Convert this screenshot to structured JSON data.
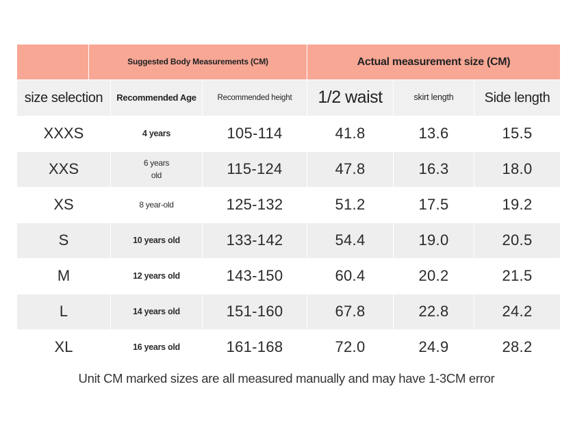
{
  "header": {
    "group_suggested": "Suggested Body Measurements (CM)",
    "group_actual": "Actual measurement size (CM)"
  },
  "columns": {
    "size": "size selection",
    "age": "Recommended Age",
    "height": "Recommended height",
    "waist": "1/2 waist",
    "skirt": "skirt length",
    "side": "Side length"
  },
  "rows": [
    {
      "size": "XXXS",
      "age": "4 years",
      "height": "105-114",
      "waist": "41.8",
      "skirt": "13.6",
      "side": "15.5"
    },
    {
      "size": "XXS",
      "age": "6 years\nold",
      "height": "115-124",
      "waist": "47.8",
      "skirt": "16.3",
      "side": "18.0"
    },
    {
      "size": "XS",
      "age": "8 year-old",
      "height": "125-132",
      "waist": "51.2",
      "skirt": "17.5",
      "side": "19.2"
    },
    {
      "size": "S",
      "age": "10 years old",
      "height": "133-142",
      "waist": "54.4",
      "skirt": "19.0",
      "side": "20.5"
    },
    {
      "size": "M",
      "age": "12 years old",
      "height": "143-150",
      "waist": "60.4",
      "skirt": "20.2",
      "side": "21.5"
    },
    {
      "size": "L",
      "age": "14 years old",
      "height": "151-160",
      "waist": "67.8",
      "skirt": "22.8",
      "side": "24.2"
    },
    {
      "size": "XL",
      "age": "16 years old",
      "height": "161-168",
      "waist": "72.0",
      "skirt": "24.9",
      "side": "28.2"
    }
  ],
  "footnote": "Unit CM marked sizes are all measured manually and may have 1-3CM error",
  "colors": {
    "header_salmon": "#f8a795",
    "subheader_gray": "#f0f0f0",
    "row_stripe": "#eeeeee"
  }
}
